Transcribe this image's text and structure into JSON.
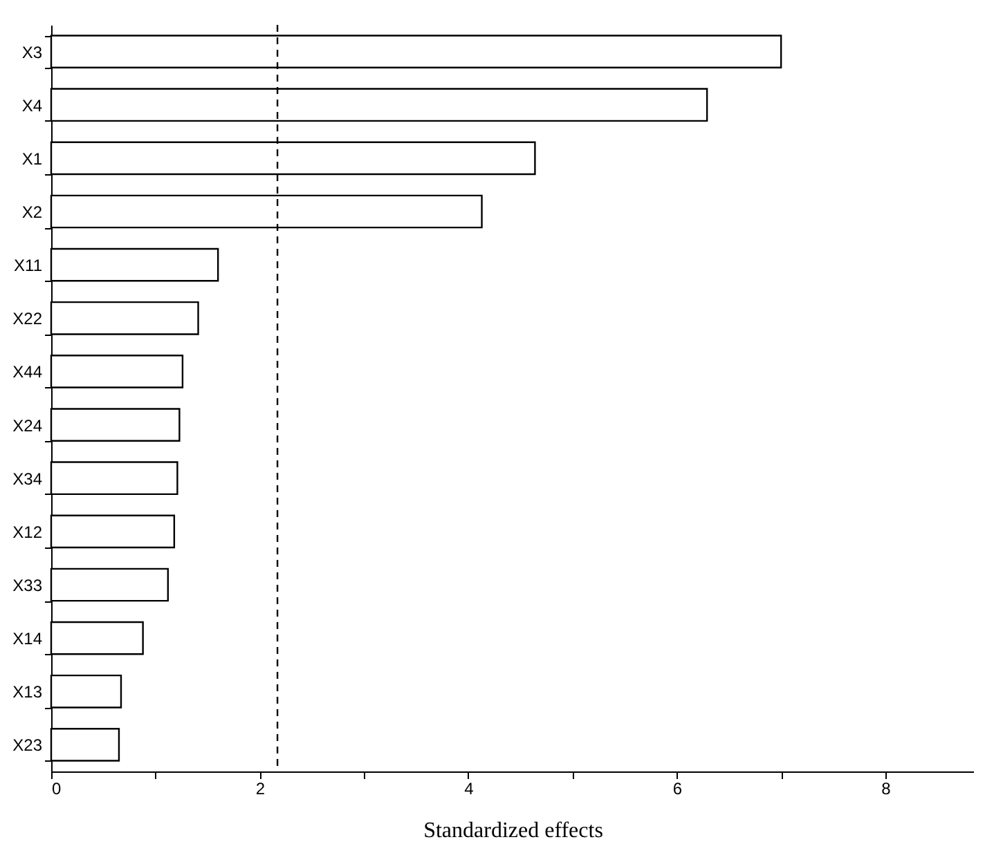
{
  "chart_data": {
    "type": "bar",
    "orientation": "horizontal",
    "xlabel": "Standardized effects",
    "categories": [
      "X3",
      "X4",
      "X1",
      "X2",
      "X11",
      "X22",
      "X44",
      "X24",
      "X34",
      "X12",
      "X33",
      "X14",
      "X13",
      "X23"
    ],
    "values": [
      7.0,
      6.29,
      4.64,
      4.13,
      1.6,
      1.41,
      1.26,
      1.23,
      1.21,
      1.18,
      1.12,
      0.88,
      0.67,
      0.65
    ],
    "color": "#ffffff",
    "xlim": [
      0,
      8.85
    ],
    "xticks": [
      0,
      {
        "value": 1,
        "label": null
      },
      2,
      {
        "value": 3,
        "label": null
      },
      4,
      {
        "value": 5,
        "label": null
      },
      6,
      {
        "value": 7,
        "label": null
      },
      8
    ],
    "ref_lines": [
      {
        "axis": "x",
        "value": 2.17,
        "line_style": "dashed"
      }
    ],
    "grid": false
  }
}
